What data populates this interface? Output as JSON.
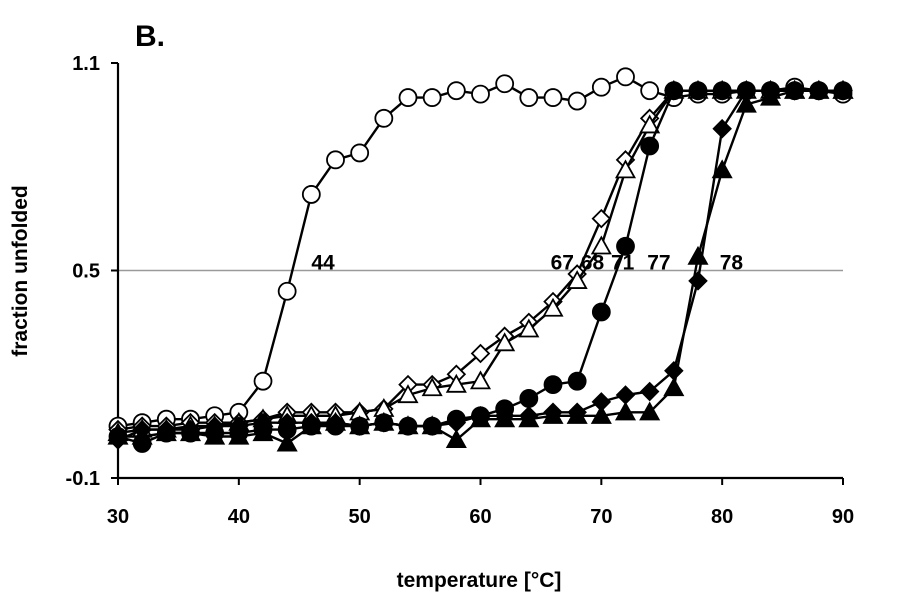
{
  "chart_data": {
    "type": "line",
    "panel_label": "B.",
    "title": "",
    "xlabel": "temperature [°C]",
    "ylabel": "fraction unfolded",
    "xlim": [
      30,
      90
    ],
    "ylim": [
      -0.1,
      1.1
    ],
    "xticks": [
      30,
      40,
      50,
      60,
      70,
      80,
      90
    ],
    "yticks": [
      -0.1,
      0.5,
      1.1
    ],
    "ytick_labels": [
      "-0.1",
      "0.5",
      "1.1"
    ],
    "grid": {
      "horizontal_at": [
        0.5
      ]
    },
    "annotations": [
      {
        "text": "44",
        "x": 46.0,
        "y": 0.5
      },
      {
        "text": "67",
        "x": 65.8,
        "y": 0.5
      },
      {
        "text": "68",
        "x": 68.3,
        "y": 0.5
      },
      {
        "text": "71",
        "x": 70.8,
        "y": 0.5
      },
      {
        "text": "77",
        "x": 73.8,
        "y": 0.5
      },
      {
        "text": "78",
        "x": 79.8,
        "y": 0.5
      }
    ],
    "series": [
      {
        "marker": "circle-open",
        "x": [
          30,
          32,
          34,
          36,
          38,
          40,
          42,
          44,
          46,
          48,
          50,
          52,
          54,
          56,
          58,
          60,
          62,
          64,
          66,
          68,
          70,
          72,
          74,
          76,
          78,
          80,
          82,
          84,
          86,
          88,
          90
        ],
        "y": [
          0.05,
          0.06,
          0.07,
          0.07,
          0.08,
          0.09,
          0.18,
          0.44,
          0.72,
          0.82,
          0.84,
          0.94,
          1.0,
          1.0,
          1.02,
          1.01,
          1.04,
          1.0,
          1.0,
          0.99,
          1.03,
          1.06,
          1.02,
          1.0,
          1.01,
          1.01,
          1.02,
          1.02,
          1.03,
          1.02,
          1.01
        ]
      },
      {
        "marker": "diamond-open",
        "x": [
          30,
          32,
          34,
          36,
          38,
          40,
          42,
          44,
          46,
          48,
          50,
          52,
          54,
          56,
          58,
          60,
          62,
          64,
          66,
          68,
          70,
          72,
          74,
          76,
          78,
          80,
          82,
          84,
          86,
          88,
          90
        ],
        "y": [
          0.04,
          0.05,
          0.05,
          0.06,
          0.06,
          0.06,
          0.07,
          0.09,
          0.09,
          0.09,
          0.09,
          0.1,
          0.17,
          0.17,
          0.2,
          0.26,
          0.31,
          0.35,
          0.41,
          0.49,
          0.65,
          0.82,
          0.94,
          1.02,
          1.02,
          1.02,
          1.02,
          1.02,
          1.02,
          1.02,
          1.02
        ]
      },
      {
        "marker": "triangle-open",
        "x": [
          30,
          32,
          34,
          36,
          38,
          40,
          42,
          44,
          46,
          48,
          50,
          52,
          54,
          56,
          58,
          60,
          62,
          64,
          66,
          68,
          70,
          72,
          74,
          76,
          78,
          80,
          82,
          84,
          86,
          88,
          90
        ],
        "y": [
          0.03,
          0.04,
          0.04,
          0.05,
          0.05,
          0.06,
          0.07,
          0.08,
          0.08,
          0.08,
          0.09,
          0.1,
          0.14,
          0.16,
          0.17,
          0.18,
          0.29,
          0.33,
          0.39,
          0.47,
          0.57,
          0.79,
          0.92,
          1.02,
          1.02,
          1.02,
          1.02,
          1.02,
          1.02,
          1.02,
          1.02
        ]
      },
      {
        "marker": "circle-filled",
        "x": [
          30,
          32,
          34,
          36,
          38,
          40,
          42,
          44,
          46,
          48,
          50,
          52,
          54,
          56,
          58,
          60,
          62,
          64,
          66,
          68,
          70,
          72,
          74,
          76,
          78,
          80,
          82,
          84,
          86,
          88,
          90
        ],
        "y": [
          0.02,
          0.0,
          0.03,
          0.03,
          0.03,
          0.03,
          0.04,
          0.04,
          0.05,
          0.05,
          0.05,
          0.06,
          0.05,
          0.05,
          0.07,
          0.08,
          0.1,
          0.13,
          0.17,
          0.18,
          0.38,
          0.57,
          0.86,
          1.02,
          1.02,
          1.02,
          1.02,
          1.02,
          1.02,
          1.02,
          1.02
        ]
      },
      {
        "marker": "diamond-filled",
        "x": [
          30,
          32,
          34,
          36,
          38,
          40,
          42,
          44,
          46,
          48,
          50,
          52,
          54,
          56,
          58,
          60,
          62,
          64,
          66,
          68,
          70,
          72,
          74,
          76,
          78,
          80,
          82,
          84,
          86,
          88,
          90
        ],
        "y": [
          0.01,
          0.04,
          0.04,
          0.04,
          0.05,
          0.05,
          0.06,
          0.06,
          0.06,
          0.06,
          0.05,
          0.06,
          0.05,
          0.05,
          0.06,
          0.08,
          0.08,
          0.08,
          0.09,
          0.09,
          0.12,
          0.14,
          0.15,
          0.21,
          0.47,
          0.91,
          1.02,
          1.02,
          1.02,
          1.02,
          1.02
        ]
      },
      {
        "marker": "triangle-filled",
        "x": [
          30,
          32,
          34,
          36,
          38,
          40,
          42,
          44,
          46,
          48,
          50,
          52,
          54,
          56,
          58,
          60,
          62,
          64,
          66,
          68,
          70,
          72,
          74,
          76,
          78,
          80,
          82,
          84,
          86,
          88,
          90
        ],
        "y": [
          0.02,
          0.02,
          0.03,
          0.03,
          0.02,
          0.02,
          0.03,
          0.0,
          0.05,
          0.06,
          0.05,
          0.06,
          0.05,
          0.05,
          0.01,
          0.07,
          0.07,
          0.07,
          0.08,
          0.08,
          0.08,
          0.09,
          0.09,
          0.16,
          0.54,
          0.79,
          0.98,
          1.0,
          1.02,
          1.02,
          1.02
        ]
      }
    ]
  }
}
